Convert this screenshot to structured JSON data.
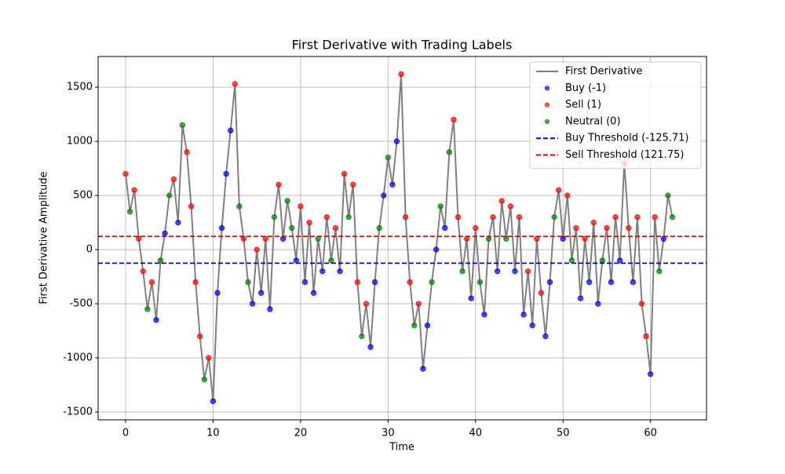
{
  "chart_data": {
    "type": "line",
    "title": "First Derivative with Trading Labels",
    "x_label": "Time",
    "y_label": "First Derivative Amplitude",
    "xlim": [
      -3.14,
      66.4
    ],
    "ylim": [
      -1572,
      1783
    ],
    "xticks": [
      0,
      10,
      20,
      30,
      40,
      50,
      60
    ],
    "yticks": [
      -1500,
      -1000,
      -500,
      0,
      500,
      1000,
      1500
    ],
    "grid": true,
    "legend": "upper right",
    "series": [
      {
        "name": "First Derivative",
        "color": "#808080",
        "x": [
          0,
          0.5,
          1,
          1.5,
          2,
          2.5,
          3,
          3.5,
          4,
          4.5,
          5,
          5.5,
          6,
          6.5,
          7,
          7.5,
          8,
          8.5,
          9,
          9.5,
          10,
          10.5,
          11,
          11.5,
          12,
          12.5,
          13,
          13.5,
          14,
          14.5,
          15,
          15.5,
          16,
          16.5,
          17,
          17.5,
          18,
          18.5,
          19,
          19.5,
          20,
          20.5,
          21,
          21.5,
          22,
          22.5,
          23,
          23.5,
          24,
          24.5,
          25,
          25.5,
          26,
          26.5,
          27,
          27.5,
          28,
          28.5,
          29,
          29.5,
          30,
          30.5,
          31,
          31.5,
          32,
          32.5,
          33,
          33.5,
          34,
          34.5,
          35,
          35.5,
          36,
          36.5,
          37,
          37.5,
          38,
          38.5,
          39,
          39.5,
          40,
          40.5,
          41,
          41.5,
          42,
          42.5,
          43,
          43.5,
          44,
          44.5,
          45,
          45.5,
          46,
          46.5,
          47,
          47.5,
          48,
          48.5,
          49,
          49.5,
          50,
          50.5,
          51,
          51.5,
          52,
          52.5,
          53,
          53.5,
          54,
          54.5,
          55,
          55.5,
          56,
          56.5,
          57,
          57.5,
          58,
          58.5,
          59,
          59.5,
          60,
          60.5,
          61,
          61.5,
          62,
          62.5
        ],
        "values": [
          700,
          350,
          550,
          100,
          -200,
          -550,
          -300,
          -650,
          -100,
          150,
          500,
          650,
          250,
          1150,
          900,
          400,
          -300,
          -800,
          -1200,
          -1000,
          -1400,
          -400,
          200,
          700,
          1100,
          1530,
          400,
          100,
          -300,
          -500,
          0,
          -400,
          100,
          -550,
          300,
          600,
          100,
          450,
          200,
          -100,
          400,
          -300,
          250,
          -400,
          100,
          -200,
          300,
          -100,
          200,
          -200,
          700,
          300,
          600,
          -300,
          -800,
          -500,
          -900,
          -300,
          200,
          500,
          850,
          600,
          1000,
          1620,
          300,
          -300,
          -700,
          -500,
          -1100,
          -700,
          -300,
          0,
          400,
          200,
          900,
          1200,
          300,
          -200,
          100,
          -450,
          200,
          -300,
          -600,
          100,
          300,
          -200,
          450,
          100,
          400,
          -200,
          300,
          -600,
          -200,
          -700,
          100,
          -400,
          -800,
          -300,
          300,
          550,
          100,
          500,
          -100,
          200,
          -450,
          100,
          -300,
          250,
          -500,
          -100,
          200,
          -300,
          300,
          -100,
          800,
          200,
          -300,
          300,
          -500,
          -800,
          -1150,
          300,
          -200,
          100,
          500,
          300
        ],
        "labels": [
          1,
          0,
          1,
          1,
          1,
          0,
          1,
          -1,
          0,
          -1,
          0,
          1,
          -1,
          0,
          1,
          1,
          1,
          1,
          0,
          1,
          -1,
          -1,
          -1,
          -1,
          -1,
          1,
          0,
          1,
          0,
          -1,
          1,
          -1,
          1,
          -1,
          0,
          1,
          -1,
          0,
          0,
          -1,
          1,
          -1,
          1,
          -1,
          0,
          -1,
          1,
          0,
          1,
          -1,
          1,
          0,
          1,
          1,
          0,
          1,
          -1,
          -1,
          0,
          -1,
          0,
          -1,
          -1,
          1,
          1,
          1,
          0,
          1,
          -1,
          -1,
          0,
          -1,
          0,
          -1,
          0,
          1,
          1,
          0,
          1,
          -1,
          1,
          0,
          -1,
          0,
          1,
          -1,
          1,
          0,
          1,
          -1,
          1,
          -1,
          1,
          -1,
          1,
          1,
          -1,
          -1,
          0,
          1,
          -1,
          1,
          0,
          1,
          -1,
          1,
          -1,
          1,
          -1,
          0,
          1,
          -1,
          1,
          -1,
          1,
          1,
          -1,
          1,
          1,
          1,
          -1,
          1,
          0,
          -1,
          0,
          0
        ]
      }
    ],
    "label_classes": [
      {
        "name": "Buy (-1)",
        "label": -1,
        "color": "#0000ff"
      },
      {
        "name": "Sell (1)",
        "label": 1,
        "color": "#ff0000"
      },
      {
        "name": "Neutral (0)",
        "label": 0,
        "color": "#008000"
      }
    ],
    "thresholds": [
      {
        "name": "Buy Threshold (-125.71)",
        "value": -125.71,
        "color": "#0000cc"
      },
      {
        "name": "Sell Threshold (121.75)",
        "value": 121.75,
        "color": "#dd0000"
      }
    ]
  }
}
